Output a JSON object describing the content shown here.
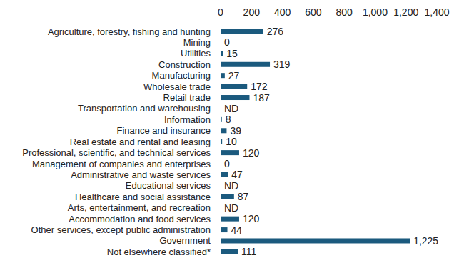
{
  "chart_data": {
    "type": "bar",
    "orientation": "horizontal",
    "categories": [
      "Agriculture, forestry, fishing and hunting",
      "Mining",
      "Utilities",
      "Construction",
      "Manufacturing",
      "Wholesale trade",
      "Retail trade",
      "Transportation and warehousing",
      "Information",
      "Finance and insurance",
      "Real estate and rental and leasing",
      "Professional, scientific, and technical services",
      "Management of companies and enterprises",
      "Administrative and waste services",
      "Educational services",
      "Healthcare and social assistance",
      "Arts, entertainment, and recreation",
      "Accommodation and food services",
      "Other services, except public administration",
      "Government",
      "Not elsewhere classified*"
    ],
    "values": [
      276,
      0,
      15,
      319,
      27,
      172,
      187,
      null,
      8,
      39,
      10,
      120,
      0,
      47,
      null,
      87,
      null,
      120,
      44,
      1225,
      111
    ],
    "value_labels": [
      "276",
      "0",
      "15",
      "319",
      "27",
      "172",
      "187",
      "ND",
      "8",
      "39",
      "10",
      "120",
      "0",
      "47",
      "ND",
      "87",
      "ND",
      "120",
      "44",
      "1,225",
      "111"
    ],
    "color": "#1b5a7e",
    "xlim": [
      0,
      1400
    ],
    "xticks": [
      0,
      200,
      400,
      600,
      800,
      {
        "value": 1000,
        "label": "1,000"
      },
      {
        "value": 1200,
        "label": "1,200"
      },
      {
        "value": 1400,
        "label": "1,400"
      }
    ],
    "grid": false,
    "data_labels": true
  }
}
